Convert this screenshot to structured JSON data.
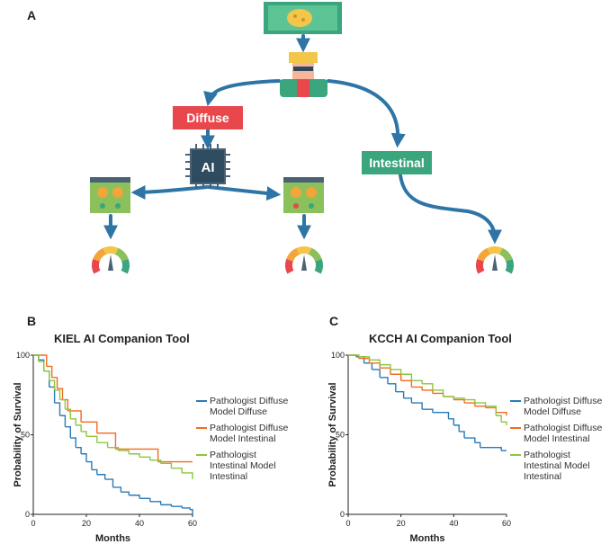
{
  "panels": {
    "a": "A",
    "b": "B",
    "c": "C"
  },
  "diagram": {
    "ai": "AI",
    "diffuse": "Diffuse",
    "intestinal": "Intestinal"
  },
  "chart_data": [
    {
      "type": "line",
      "step": true,
      "title": "KIEL AI Companion Tool",
      "xlabel": "Months",
      "ylabel": "Probability of Survival",
      "xlim": [
        0,
        60
      ],
      "ylim": [
        0,
        100
      ],
      "xticks": [
        0,
        20,
        40,
        60
      ],
      "yticks": [
        0,
        50,
        100
      ],
      "series": [
        {
          "name": "Pathologist Diffuse Model Diffuse",
          "color": "#2a7ab8",
          "x": [
            0,
            2,
            4,
            6,
            8,
            10,
            12,
            14,
            16,
            18,
            20,
            22,
            24,
            27,
            30,
            33,
            36,
            40,
            44,
            48,
            52,
            56,
            59,
            60
          ],
          "values": [
            100,
            97,
            90,
            80,
            70,
            62,
            55,
            48,
            42,
            38,
            33,
            28,
            25,
            22,
            17,
            14,
            12,
            10,
            8,
            6,
            5,
            4,
            3,
            0
          ]
        },
        {
          "name": "Pathologist Diffuse Model Intestinal",
          "color": "#f26b21",
          "x": [
            0,
            5,
            7,
            9,
            11,
            13,
            18,
            24,
            31,
            47,
            60
          ],
          "values": [
            100,
            93,
            86,
            79,
            72,
            65,
            58,
            51,
            41,
            33,
            33
          ]
        },
        {
          "name": "Pathologist Intestinal Model Intestinal",
          "color": "#8cc63f",
          "x": [
            0,
            2,
            4,
            6,
            8,
            10,
            12,
            14,
            16,
            18,
            20,
            24,
            28,
            32,
            36,
            40,
            44,
            48,
            52,
            56,
            60
          ],
          "values": [
            100,
            96,
            90,
            84,
            78,
            72,
            66,
            60,
            56,
            52,
            49,
            45,
            42,
            40,
            38,
            36,
            34,
            32,
            29,
            26,
            22
          ]
        }
      ]
    },
    {
      "type": "line",
      "step": true,
      "title": "KCCH AI Companion Tool",
      "xlabel": "Months",
      "ylabel": "Probability of Survival",
      "xlim": [
        0,
        60
      ],
      "ylim": [
        0,
        100
      ],
      "xticks": [
        0,
        20,
        40,
        60
      ],
      "yticks": [
        0,
        50,
        100
      ],
      "series": [
        {
          "name": "Pathologist Diffuse Model Diffuse",
          "color": "#2a7ab8",
          "x": [
            0,
            3,
            6,
            9,
            12,
            15,
            18,
            21,
            24,
            28,
            32,
            38,
            40,
            42,
            44,
            48,
            50,
            58,
            60
          ],
          "values": [
            100,
            99,
            95,
            91,
            86,
            82,
            77,
            73,
            70,
            66,
            64,
            60,
            56,
            52,
            48,
            45,
            42,
            40,
            40
          ]
        },
        {
          "name": "Pathologist Diffuse Model Intestinal",
          "color": "#f26b21",
          "x": [
            0,
            4,
            8,
            12,
            16,
            20,
            24,
            28,
            32,
            36,
            40,
            44,
            48,
            52,
            56,
            60
          ],
          "values": [
            100,
            98,
            95,
            92,
            88,
            84,
            80,
            78,
            76,
            74,
            72,
            70,
            68,
            67,
            64,
            62
          ]
        },
        {
          "name": "Pathologist Intestinal Model Intestinal",
          "color": "#8cc63f",
          "x": [
            0,
            4,
            8,
            12,
            16,
            20,
            24,
            28,
            32,
            36,
            40,
            44,
            48,
            52,
            56,
            58,
            60
          ],
          "values": [
            100,
            99,
            97,
            94,
            91,
            88,
            84,
            82,
            78,
            74,
            73,
            72,
            70,
            68,
            62,
            58,
            56
          ]
        }
      ]
    }
  ]
}
